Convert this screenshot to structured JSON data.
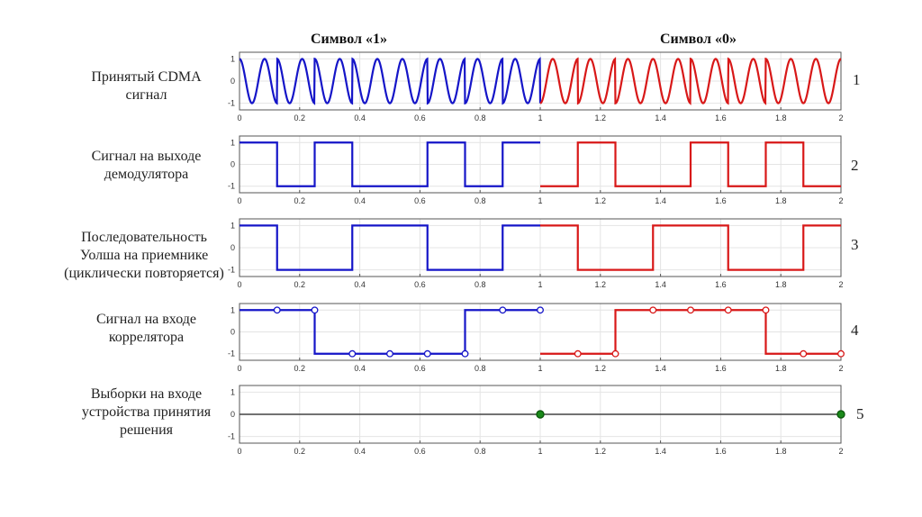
{
  "headers": {
    "left": "Символ «1»",
    "right": "Символ «0»"
  },
  "colors": {
    "symbol1": "#1515c8",
    "symbol0": "#d81818",
    "sample": "#1a8a1a",
    "axis": "#555555",
    "grid": "#e4e4e4"
  },
  "chart_data": [
    {
      "id": "p1",
      "type": "line",
      "number": "1",
      "label_lines": [
        "Принятый CDMA",
        "сигнал"
      ],
      "xlim": [
        0,
        2
      ],
      "ylim": [
        -1.3,
        1.3
      ],
      "x_ticks": [
        "0",
        "0.2",
        "0.4",
        "0.6",
        "0.8",
        "1",
        "1.2",
        "1.4",
        "1.6",
        "1.8",
        "2"
      ],
      "y_ticks": [
        "1",
        "0",
        "-1"
      ],
      "signal": "cos(2π·12·t)·chip(t)",
      "chips": [
        1,
        -1,
        1,
        -1,
        -1,
        1,
        -1,
        1,
        -1,
        1,
        -1,
        -1,
        1,
        -1,
        1,
        1
      ]
    },
    {
      "id": "p2",
      "type": "line",
      "number": "2",
      "label_lines": [
        "Сигнал  на выходе",
        "демодулятора"
      ],
      "xlim": [
        0,
        2
      ],
      "ylim": [
        -1.3,
        1.3
      ],
      "x_ticks": [
        "0",
        "0.2",
        "0.4",
        "0.6",
        "0.8",
        "1",
        "1.2",
        "1.4",
        "1.6",
        "1.8",
        "2"
      ],
      "y_ticks": [
        "1",
        "0",
        "-1"
      ],
      "chip_width": 0.125,
      "chips": [
        1,
        -1,
        1,
        -1,
        -1,
        1,
        -1,
        1,
        -1,
        1,
        -1,
        -1,
        1,
        -1,
        1,
        -1
      ]
    },
    {
      "id": "p3",
      "type": "line",
      "number": "3",
      "label_lines": [
        "Последовательность",
        "Уолша на приемнике",
        "(циклически повторяется)"
      ],
      "xlim": [
        0,
        2
      ],
      "ylim": [
        -1.3,
        1.3
      ],
      "x_ticks": [
        "0",
        "0.2",
        "0.4",
        "0.6",
        "0.8",
        "1",
        "1.2",
        "1.4",
        "1.6",
        "1.8",
        "2"
      ],
      "y_ticks": [
        "1",
        "0",
        "-1"
      ],
      "chip_width": 0.125,
      "chips": [
        1,
        -1,
        -1,
        1,
        1,
        -1,
        -1,
        1,
        1,
        -1,
        -1,
        1,
        1,
        -1,
        -1,
        1
      ]
    },
    {
      "id": "p4",
      "type": "line",
      "number": "4",
      "label_lines": [
        "Сигнал  на входе",
        "коррелятора"
      ],
      "xlim": [
        0,
        2
      ],
      "ylim": [
        -1.3,
        1.3
      ],
      "x_ticks": [
        "0",
        "0.2",
        "0.4",
        "0.6",
        "0.8",
        "1",
        "1.2",
        "1.4",
        "1.6",
        "1.8",
        "2"
      ],
      "y_ticks": [
        "1",
        "0",
        "-1"
      ],
      "chip_width": 0.125,
      "chips": [
        1,
        1,
        -1,
        -1,
        -1,
        -1,
        1,
        1,
        -1,
        -1,
        1,
        1,
        1,
        1,
        -1,
        -1
      ],
      "markers_x": [
        0.125,
        0.25,
        0.375,
        0.5,
        0.625,
        0.75,
        0.875,
        1.0,
        1.125,
        1.25,
        1.375,
        1.5,
        1.625,
        1.75,
        1.875,
        2.0
      ]
    },
    {
      "id": "p5",
      "type": "scatter",
      "number": "5",
      "label_lines": [
        "Выборки на входе",
        "устройства  принятия",
        "решения"
      ],
      "xlim": [
        0,
        2
      ],
      "ylim": [
        -1.3,
        1.3
      ],
      "x_ticks": [
        "0",
        "0.2",
        "0.4",
        "0.6",
        "0.8",
        "1",
        "1.2",
        "1.4",
        "1.6",
        "1.8",
        "2"
      ],
      "y_ticks": [
        "1",
        "0",
        "-1"
      ],
      "points": [
        {
          "x": 1,
          "y": 0
        },
        {
          "x": 2,
          "y": 0
        }
      ]
    }
  ]
}
